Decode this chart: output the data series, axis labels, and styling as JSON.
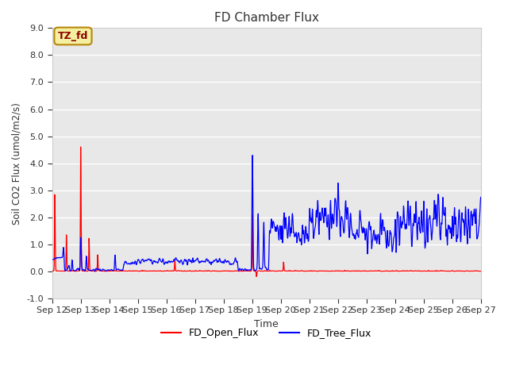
{
  "title": "FD Chamber Flux",
  "xlabel": "Time",
  "ylabel": "Soil CO2 Flux (umol/m2/s)",
  "ylim": [
    -1.0,
    9.0
  ],
  "yticks": [
    -1.0,
    0.0,
    1.0,
    2.0,
    3.0,
    4.0,
    5.0,
    6.0,
    7.0,
    8.0,
    9.0
  ],
  "ytick_labels": [
    "-1.0",
    "0.0",
    "1.0",
    "2.0",
    "3.0",
    "4.0",
    "5.0",
    "6.0",
    "7.0",
    "8.0",
    "9.0"
  ],
  "annotation_text": "TZ_fd",
  "annotation_bg": "#f5f0a0",
  "annotation_border": "#b8860b",
  "open_flux_color": "#ff0000",
  "tree_flux_color": "#0000ff",
  "background_color": "#e8e8e8",
  "legend_labels": [
    "FD_Open_Flux",
    "FD_Tree_Flux"
  ],
  "start_day": 12,
  "end_day": 27,
  "xtick_labels": [
    "Sep 12",
    "Sep 13",
    "Sep 14",
    "Sep 15",
    "Sep 16",
    "Sep 17",
    "Sep 18",
    "Sep 19",
    "Sep 20",
    "Sep 21",
    "Sep 22",
    "Sep 23",
    "Sep 24",
    "Sep 25",
    "Sep 26",
    "Sep 27"
  ]
}
